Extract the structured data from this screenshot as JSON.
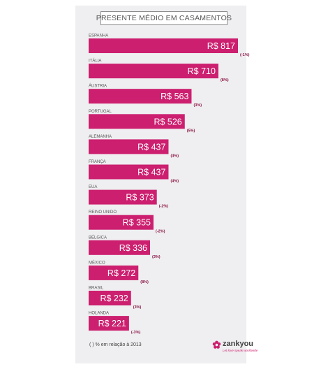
{
  "colors": {
    "bar": "#cc1f6f",
    "value_text": "#ffffff",
    "change_text": "#8a1444",
    "category_text": "#555555",
    "card_background": "#efeef0"
  },
  "chart_data": {
    "type": "bar",
    "orientation": "horizontal",
    "title": "PRESENTE MÉDIO EM CASAMENTOS",
    "categories": [
      "ESPANHA",
      "ITÁLIA",
      "ÁUSTRIA",
      "PORTUGAL",
      "ALEMANHA",
      "FRANÇA",
      "EUA",
      "REINO UNIDO",
      "BÉLGICA",
      "MÉXICO",
      "BRASIL",
      "HOLANDA"
    ],
    "values": [
      817,
      710,
      563,
      526,
      437,
      437,
      373,
      355,
      336,
      272,
      232,
      221
    ],
    "value_labels": [
      "R$ 817",
      "R$ 710",
      "R$ 563",
      "R$ 526",
      "R$ 437",
      "R$ 437",
      "R$ 373",
      "R$ 355",
      "R$ 336",
      "R$ 272",
      "R$ 232",
      "R$ 221"
    ],
    "change_labels": [
      "(-1%)",
      "(8%)",
      "(3%)",
      "(5%)",
      "(4%)",
      "(4%)",
      "(-2%)",
      "(-2%)",
      "(3%)",
      "(8%)",
      "(3%)",
      "(-3%)"
    ],
    "xlim": [
      0,
      817
    ],
    "grid": false,
    "legend": "none"
  },
  "footnote": "( ) % em relação à 2013",
  "logo": {
    "name": "zankyou",
    "tagline": "Let love speak worldwide"
  }
}
